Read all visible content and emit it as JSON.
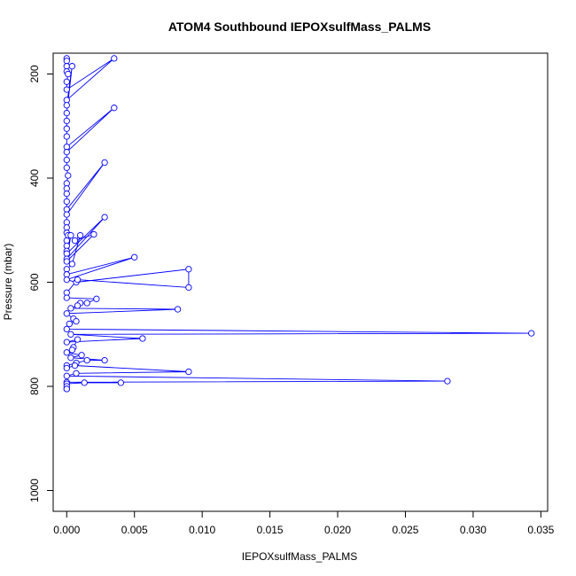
{
  "chart_data": {
    "type": "line",
    "title": "ATOM4 Southbound IEPOXsulfMass_PALMS",
    "xlabel": "IEPOXsulfMass_PALMS",
    "ylabel": "Pressure (mbar)",
    "xlim": [
      -0.001,
      0.0355
    ],
    "ylim": [
      1040,
      160
    ],
    "y_reversed": true,
    "x_ticks": [
      "0.000",
      "0.005",
      "0.010",
      "0.015",
      "0.020",
      "0.025",
      "0.030",
      "0.035"
    ],
    "x_tick_values": [
      0,
      0.005,
      0.01,
      0.015,
      0.02,
      0.025,
      0.03,
      0.035
    ],
    "y_ticks": [
      "200",
      "400",
      "600",
      "800",
      "1000"
    ],
    "y_tick_values": [
      200,
      400,
      600,
      800,
      1000
    ],
    "grid": false,
    "series": [
      {
        "color": "#0000ff",
        "marker": "open-circle",
        "x": [
          0,
          0,
          0,
          0,
          0.0001,
          0,
          0,
          0.0035,
          0,
          0,
          0.0004,
          0,
          0,
          0,
          0,
          0,
          0.0035,
          0,
          0,
          0,
          0.0001,
          0,
          0,
          0,
          0,
          0,
          0.0028,
          0,
          0,
          0,
          0,
          0.0001,
          0,
          0,
          0,
          0,
          0.0028,
          0,
          0.0003,
          0,
          0.002,
          0.0006,
          0.001,
          0.0004,
          0,
          0,
          0.005,
          0,
          0.0007,
          0.009,
          0.009,
          0.0008,
          0,
          0,
          0.0022,
          0.0015,
          0.001,
          0.0008,
          0.0003,
          0.0082,
          0,
          0.0005,
          0.0007,
          0.0002,
          0,
          0.0343,
          0.0003,
          0.0056,
          0,
          0.0008,
          0.0005,
          0.0004,
          0,
          0.0011,
          0.0003,
          0.0028,
          0.0015,
          0.0007,
          0,
          0,
          0.0006,
          0.009,
          0.0007,
          0,
          0.0281,
          0,
          0.004,
          0.0013,
          0,
          0,
          0,
          0
        ],
        "y": [
          170,
          175,
          185,
          195,
          200,
          215,
          230,
          170,
          250,
          260,
          185,
          275,
          290,
          305,
          320,
          340,
          265,
          350,
          365,
          380,
          395,
          410,
          420,
          430,
          445,
          460,
          370,
          470,
          485,
          495,
          505,
          510,
          520,
          530,
          540,
          545,
          475,
          555,
          510,
          560,
          508,
          520,
          510,
          565,
          575,
          585,
          552,
          595,
          600,
          575,
          610,
          595,
          620,
          630,
          632,
          640,
          640,
          645,
          650,
          652,
          660,
          670,
          675,
          680,
          690,
          698,
          700,
          708,
          715,
          710,
          725,
          730,
          735,
          740,
          745,
          750,
          750,
          755,
          760,
          765,
          760,
          772,
          775,
          780,
          790,
          792,
          793,
          793,
          795,
          800,
          805,
          805
        ]
      }
    ]
  }
}
